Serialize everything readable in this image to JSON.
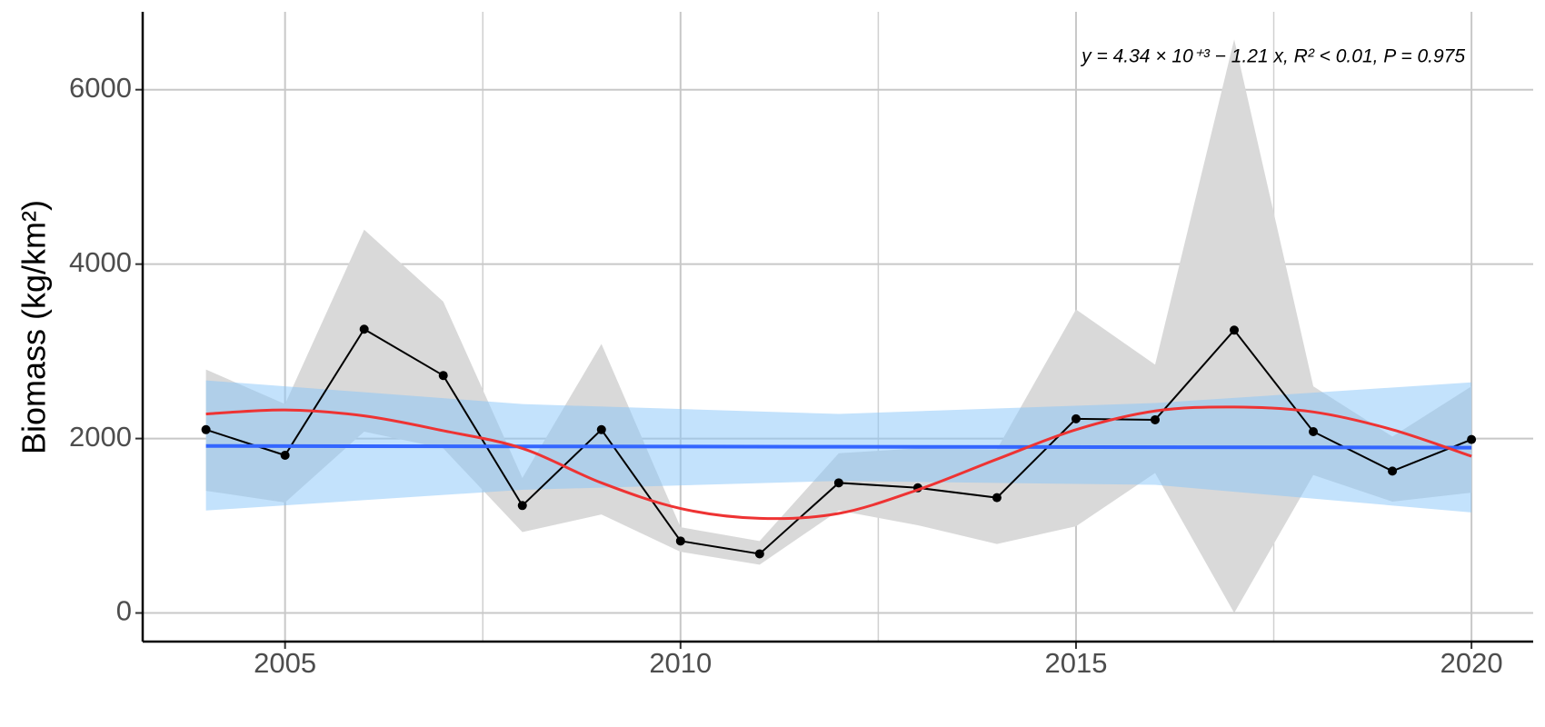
{
  "chart_data": {
    "type": "line",
    "y_label": "Biomass (kg/km²)",
    "annotation": "y = 4.34 × 10⁺³ − 1.21 x, R² < 0.01, P = 0.975",
    "x": [
      2004,
      2005,
      2006,
      2007,
      2008,
      2009,
      2010,
      2011,
      2012,
      2013,
      2014,
      2015,
      2016,
      2017,
      2018,
      2019,
      2020
    ],
    "values": [
      2102,
      1808,
      3254,
      2723,
      1232,
      2102,
      825,
      678,
      1492,
      1435,
      1322,
      2226,
      2215,
      3243,
      2079,
      1627,
      1989
    ],
    "color": "#000000",
    "band": {
      "color": "#d9d9d9",
      "lower": [
        1401,
        1266,
        2079,
        1887,
        927,
        1130,
        701,
        554,
        1175,
        1006,
        791,
        994,
        1605,
        0,
        1582,
        1277,
        1379
      ],
      "upper": [
        2791,
        2395,
        4395,
        3571,
        1548,
        3085,
        983,
        825,
        1831,
        1887,
        1876,
        3480,
        2847,
        6576,
        2599,
        2023,
        2599
      ]
    },
    "trend": {
      "color": "#3366ff",
      "band_color": "#87c6fa",
      "x": [
        2004,
        2008,
        2012,
        2016,
        2020
      ],
      "values": [
        1915,
        1910,
        1906,
        1901,
        1896
      ],
      "lower": [
        1175,
        1412,
        1514,
        1469,
        1153
      ],
      "upper": [
        2667,
        2395,
        2282,
        2407,
        2644
      ]
    },
    "smooth": {
      "color": "#ee3333",
      "values": [
        2282,
        2328,
        2260,
        2090,
        1887,
        1492,
        1198,
        1085,
        1141,
        1412,
        1763,
        2102,
        2316,
        2362,
        2305,
        2102,
        1797
      ]
    },
    "xlim": [
      2003.2,
      2020.78
    ],
    "ylim": [
      -328,
      6893
    ],
    "xticks": [
      2005,
      2010,
      2015,
      2020
    ],
    "xminor": [
      2007.5,
      2012.5,
      2017.5
    ],
    "yticks": [
      0,
      2000,
      4000,
      6000
    ],
    "grid": true
  }
}
